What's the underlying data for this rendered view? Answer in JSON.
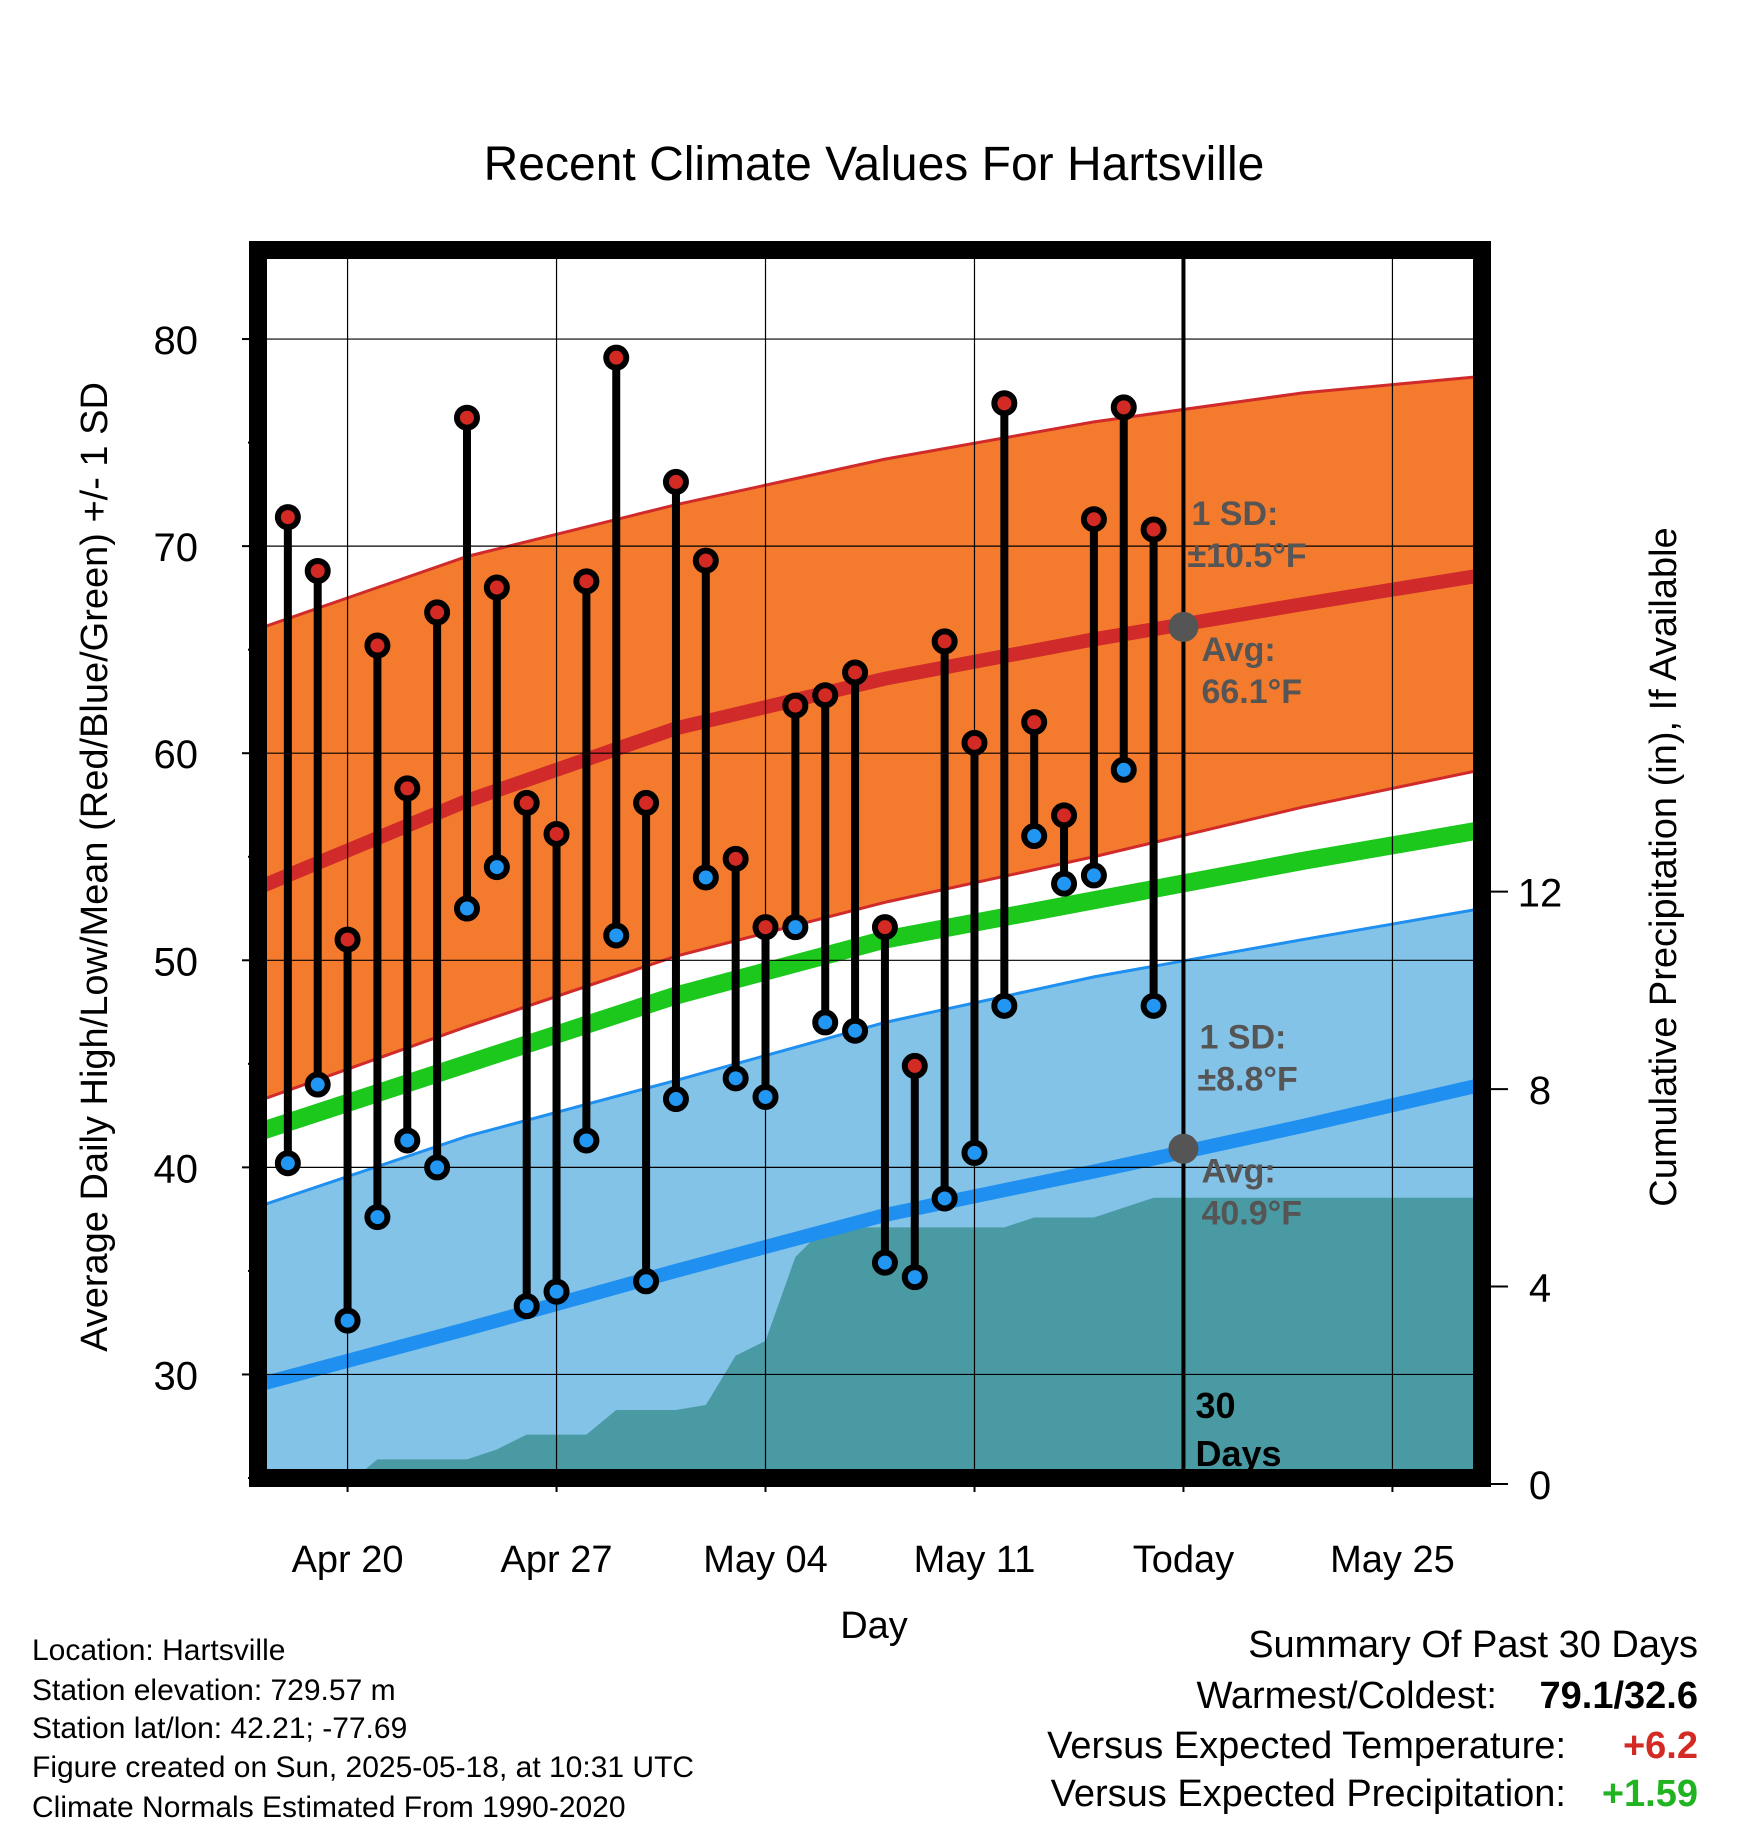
{
  "chart_data": {
    "type": "line",
    "title": "Recent Climate Values For Hartsville",
    "xlabel": "Day",
    "ylabel": "Average Daily High/Low/Mean (Red/Blue/Green) +/- 1 SD",
    "ylabel_right": "Cumulative Precipitation (in), If Available",
    "ylim": [
      25,
      84.3
    ],
    "ylim_right": [
      0,
      25
    ],
    "y_ticks": [
      30,
      40,
      50,
      60,
      70,
      80
    ],
    "y_ticks_right": [
      0,
      4,
      8,
      12
    ],
    "x_start": "2025-04-17",
    "x_end": "2025-05-28",
    "x_tick_dates": [
      "2025-04-20",
      "2025-04-27",
      "2025-05-04",
      "2025-05-11",
      "2025-05-18",
      "2025-05-25"
    ],
    "x_tick_labels": [
      "Apr 20",
      "Apr 27",
      "May 04",
      "May 11",
      "Today",
      "May 25"
    ],
    "today": "2025-05-18",
    "window_label_line1": "30",
    "window_label_line2": "Days",
    "normals": {
      "dates": [
        "2025-04-17",
        "2025-04-24",
        "2025-05-01",
        "2025-05-08",
        "2025-05-15",
        "2025-05-22",
        "2025-05-28"
      ],
      "high_avg": [
        53.5,
        57.7,
        61.2,
        63.6,
        65.5,
        67.2,
        68.6
      ],
      "high_sd_upper": [
        66.0,
        69.5,
        72.0,
        74.2,
        76.0,
        77.4,
        78.2
      ],
      "high_sd_lower": [
        43.2,
        46.8,
        50.2,
        52.8,
        55.0,
        57.4,
        59.2
      ],
      "mean": [
        41.7,
        45.0,
        48.3,
        51.0,
        52.9,
        54.8,
        56.3
      ],
      "low_avg": [
        29.5,
        32.2,
        35.0,
        37.7,
        39.8,
        42.0,
        44.0
      ],
      "low_sd_upper": [
        38.1,
        41.5,
        44.2,
        47.0,
        49.2,
        51.0,
        52.5
      ]
    },
    "series": [
      {
        "name": "High",
        "dates": [
          "2025-04-18",
          "2025-04-19",
          "2025-04-20",
          "2025-04-21",
          "2025-04-22",
          "2025-04-23",
          "2025-04-24",
          "2025-04-25",
          "2025-04-26",
          "2025-04-27",
          "2025-04-28",
          "2025-04-29",
          "2025-04-30",
          "2025-05-01",
          "2025-05-02",
          "2025-05-03",
          "2025-05-04",
          "2025-05-05",
          "2025-05-06",
          "2025-05-07",
          "2025-05-08",
          "2025-05-09",
          "2025-05-10",
          "2025-05-11",
          "2025-05-12",
          "2025-05-13",
          "2025-05-14",
          "2025-05-15",
          "2025-05-16",
          "2025-05-17"
        ],
        "values": [
          71.4,
          68.8,
          51.0,
          65.2,
          58.3,
          66.8,
          76.2,
          68.0,
          57.6,
          56.1,
          68.3,
          79.1,
          57.6,
          73.1,
          69.3,
          54.9,
          51.6,
          62.3,
          62.8,
          63.9,
          51.6,
          44.9,
          65.4,
          60.5,
          76.9,
          61.5,
          57.0,
          71.3,
          76.7,
          70.8
        ]
      },
      {
        "name": "Low",
        "dates": [
          "2025-04-18",
          "2025-04-19",
          "2025-04-20",
          "2025-04-21",
          "2025-04-22",
          "2025-04-23",
          "2025-04-24",
          "2025-04-25",
          "2025-04-26",
          "2025-04-27",
          "2025-04-28",
          "2025-04-29",
          "2025-04-30",
          "2025-05-01",
          "2025-05-02",
          "2025-05-03",
          "2025-05-04",
          "2025-05-05",
          "2025-05-06",
          "2025-05-07",
          "2025-05-08",
          "2025-05-09",
          "2025-05-10",
          "2025-05-11",
          "2025-05-12",
          "2025-05-13",
          "2025-05-14",
          "2025-05-15",
          "2025-05-16",
          "2025-05-17"
        ],
        "values": [
          40.2,
          44.0,
          32.6,
          37.6,
          41.3,
          40.0,
          52.5,
          54.5,
          33.3,
          34.0,
          41.3,
          51.2,
          34.5,
          43.3,
          54.0,
          44.3,
          43.4,
          51.6,
          47.0,
          46.6,
          35.4,
          34.7,
          38.5,
          40.7,
          47.8,
          56.0,
          53.7,
          54.1,
          59.2,
          47.8
        ]
      },
      {
        "name": "Cumulative Precipitation",
        "dates": [
          "2025-04-17",
          "2025-04-18",
          "2025-04-19",
          "2025-04-20",
          "2025-04-21",
          "2025-04-22",
          "2025-04-23",
          "2025-04-24",
          "2025-04-25",
          "2025-04-26",
          "2025-04-27",
          "2025-04-28",
          "2025-04-29",
          "2025-04-30",
          "2025-05-01",
          "2025-05-02",
          "2025-05-03",
          "2025-05-04",
          "2025-05-05",
          "2025-05-06",
          "2025-05-07",
          "2025-05-08",
          "2025-05-09",
          "2025-05-10",
          "2025-05-11",
          "2025-05-12",
          "2025-05-13",
          "2025-05-14",
          "2025-05-15",
          "2025-05-16",
          "2025-05-17",
          "2025-05-18",
          "2025-05-28"
        ],
        "values": [
          0,
          0,
          0,
          0,
          0.5,
          0.5,
          0.5,
          0.5,
          0.7,
          1.0,
          1.0,
          1.0,
          1.5,
          1.5,
          1.5,
          1.6,
          2.6,
          2.9,
          4.6,
          5.2,
          5.2,
          5.2,
          5.2,
          5.2,
          5.2,
          5.2,
          5.4,
          5.4,
          5.4,
          5.6,
          5.8,
          5.8,
          5.8
        ]
      }
    ],
    "annotations": {
      "high_sd_label": "1 SD:",
      "high_sd_value": "±10.5°F",
      "high_avg_label": "Avg:",
      "high_avg_value": "66.1°F",
      "high_avg": 66.1,
      "low_sd_label": "1 SD:",
      "low_sd_value": "±8.8°F",
      "low_avg_label": "Avg:",
      "low_avg_value": "40.9°F",
      "low_avg": 40.9
    },
    "grid": true,
    "colors": {
      "high_band": "#F47B2D",
      "high_line": "#D02A2A",
      "mean_line": "#1CC81C",
      "low_band": "#83C3E8",
      "low_line": "#2090F0",
      "precip": "#4A9AA3",
      "high_marker": "#D42A24",
      "low_marker": "#2196F3",
      "annotation_text": "#555555",
      "positive_temp": "#D42A24",
      "positive_precip": "#21B321"
    }
  },
  "station_info": {
    "location": "Location: Hartsville",
    "elevation": "Station elevation: 729.57 m",
    "latlon": "Station lat/lon: 42.21; -77.69",
    "created": "Figure created on Sun, 2025-05-18, at 10:31 UTC",
    "normals": "Climate Normals Estimated From 1990-2020"
  },
  "summary": {
    "title": "Summary Of Past 30 Days",
    "warm_cold_label": "Warmest/Coldest:",
    "warm_cold_value": "79.1/32.6",
    "temp_label": "Versus Expected Temperature:",
    "temp_value": "+6.2",
    "precip_label": "Versus Expected Precipitation:",
    "precip_value": "+1.59"
  }
}
